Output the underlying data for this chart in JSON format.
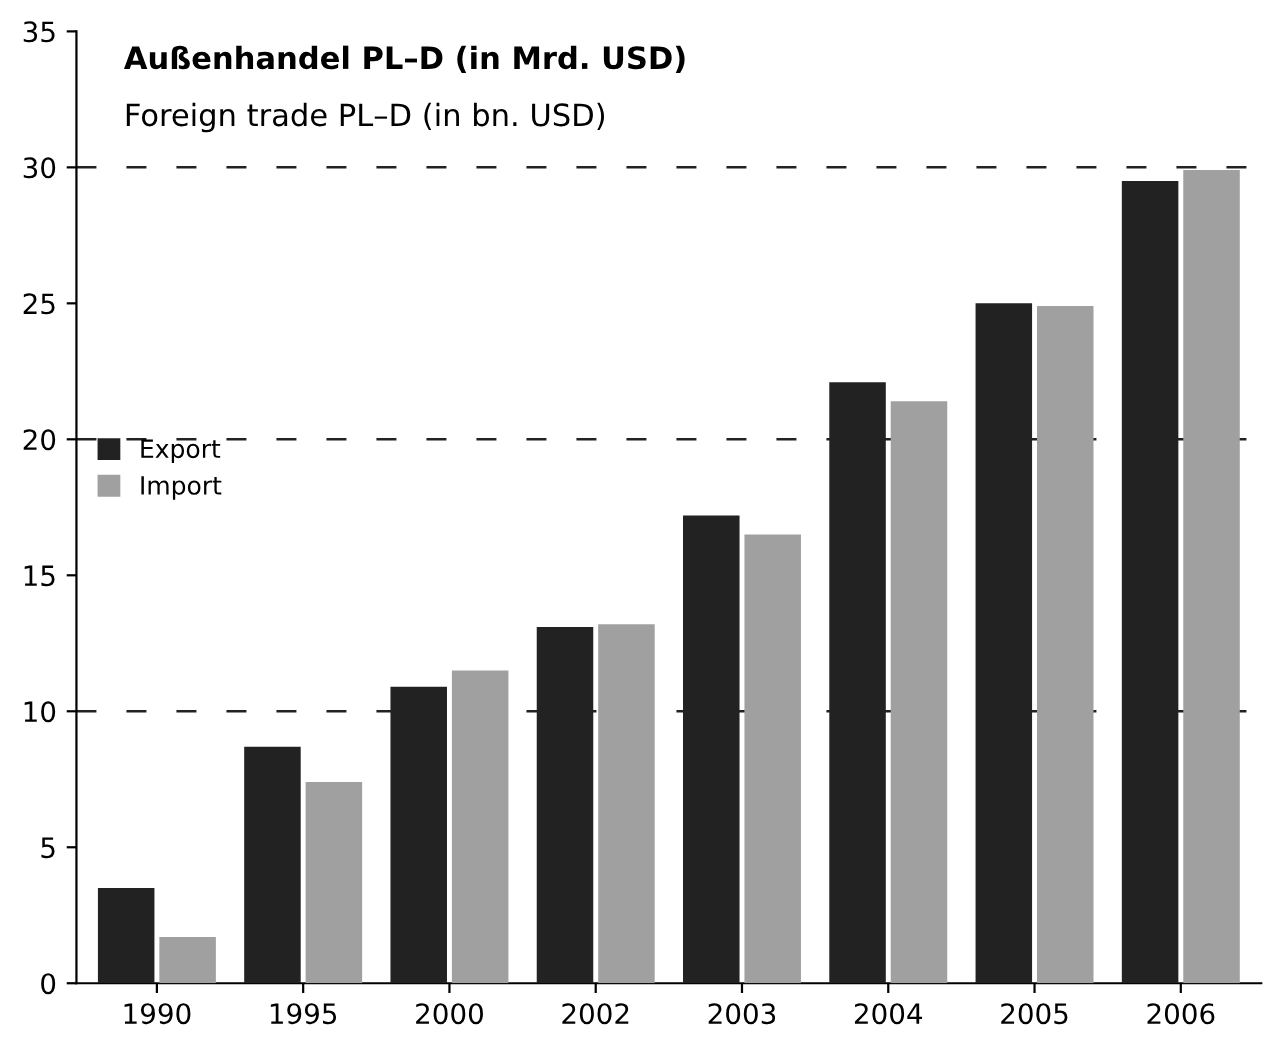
{
  "chart_data": {
    "type": "bar",
    "title": "Außenhandel PL–D (in Mrd. USD)",
    "subtitle": "Foreign trade PL–D (in bn. USD)",
    "categories": [
      "1990",
      "1995",
      "2000",
      "2002",
      "2003",
      "2004",
      "2005",
      "2006"
    ],
    "series": [
      {
        "name": "Export",
        "color": "#222222",
        "values": [
          3.5,
          8.7,
          10.9,
          13.1,
          17.2,
          22.1,
          25.0,
          29.5
        ]
      },
      {
        "name": "Import",
        "color": "#a0a0a0",
        "values": [
          1.7,
          7.4,
          11.5,
          13.2,
          16.5,
          21.4,
          24.9,
          29.9
        ]
      }
    ],
    "ylim": [
      0,
      35
    ],
    "yticks": [
      0,
      5,
      10,
      15,
      20,
      25,
      30,
      35
    ],
    "ref_lines": [
      {
        "axis": "y",
        "value": 10,
        "line_style": "dashed",
        "color": "#222222"
      },
      {
        "axis": "y",
        "value": 20,
        "line_style": "dashed",
        "color": "#222222"
      },
      {
        "axis": "y",
        "value": 30,
        "line_style": "dashed",
        "color": "#222222"
      }
    ],
    "grid": false,
    "legend": "left"
  }
}
